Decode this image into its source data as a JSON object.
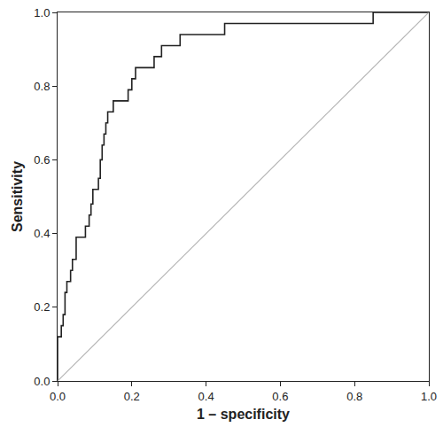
{
  "chart_data": {
    "type": "line",
    "x_label": "1 – specificity",
    "y_label": "Sensitivity",
    "series": [
      {
        "color": "#222222",
        "line_style": "step",
        "x": [
          0,
          0,
          0.01,
          0.015,
          0.02,
          0.02,
          0.025,
          0.035,
          0.04,
          0.05,
          0.05,
          0.075,
          0.085,
          0.09,
          0.095,
          0.11,
          0.115,
          0.12,
          0.125,
          0.13,
          0.135,
          0.15,
          0.19,
          0.2,
          0.21,
          0.26,
          0.28,
          0.33,
          0.45,
          0.85,
          1
        ],
        "values": [
          0,
          0.12,
          0.15,
          0.18,
          0.21,
          0.24,
          0.27,
          0.3,
          0.33,
          0.36,
          0.39,
          0.42,
          0.45,
          0.48,
          0.52,
          0.55,
          0.6,
          0.64,
          0.67,
          0.7,
          0.73,
          0.76,
          0.79,
          0.82,
          0.85,
          0.88,
          0.91,
          0.94,
          0.97,
          1,
          1
        ]
      },
      {
        "color": "#b4b4b4",
        "line_style": "solid",
        "x": [
          0,
          1
        ],
        "values": [
          0,
          1
        ]
      }
    ],
    "xlim": [
      0,
      1
    ],
    "ylim": [
      0,
      1
    ],
    "xticks": [
      {
        "value": 0,
        "label": "0.0"
      },
      0.2,
      0.4,
      0.6,
      0.8,
      {
        "value": 1,
        "label": "1.0"
      }
    ],
    "yticks": [
      {
        "value": 0,
        "label": "0.0"
      },
      0.2,
      0.4,
      0.6,
      0.8,
      {
        "value": 1,
        "label": "1.0"
      }
    ],
    "grid": false
  }
}
